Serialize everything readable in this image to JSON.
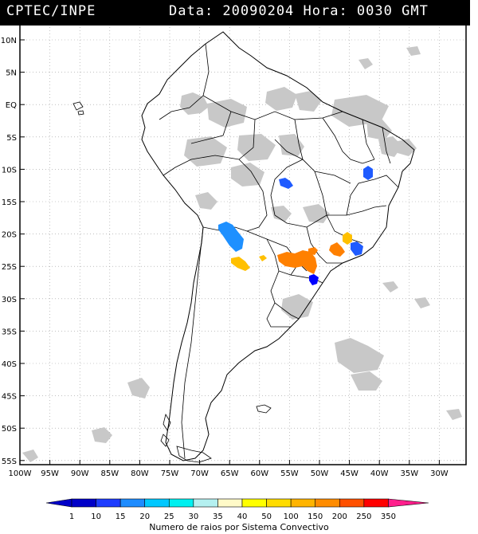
{
  "header": {
    "source": "CPTEC/INPE",
    "datetime": "Data: 20090204 Hora: 0030 GMT"
  },
  "map": {
    "lat_labels": [
      "10N",
      "5N",
      "EQ",
      "5S",
      "10S",
      "15S",
      "20S",
      "25S",
      "30S",
      "35S",
      "40S",
      "45S",
      "50S",
      "55S"
    ],
    "lon_labels": [
      "100W",
      "95W",
      "90W",
      "85W",
      "80W",
      "75W",
      "70W",
      "65W",
      "60W",
      "55W",
      "50W",
      "45W",
      "40W",
      "35W",
      "30W"
    ],
    "colors": {
      "land_border": "#000000",
      "grid": "#9a9a9a",
      "clouds": "#c8c8c8"
    },
    "systems": [
      {
        "name": "system-goias",
        "color": "#1f5bff"
      },
      {
        "name": "system-bahia",
        "color": "#1f5bff"
      },
      {
        "name": "system-bolivia",
        "color": "#1e90ff"
      },
      {
        "name": "system-paraguay-argentina",
        "color": "#ffc000"
      },
      {
        "name": "system-sao-paulo-parana",
        "color": "#ff8000"
      },
      {
        "name": "system-minas",
        "color": "#ffc000"
      },
      {
        "name": "system-rio",
        "color": "#1f5bff"
      },
      {
        "name": "system-santa-catarina",
        "color": "#0000ff"
      }
    ]
  },
  "legend": {
    "labels": [
      "1",
      "10",
      "15",
      "20",
      "25",
      "30",
      "35",
      "40",
      "50",
      "100",
      "150",
      "200",
      "250",
      "350"
    ],
    "colors": [
      "#0000c8",
      "#1e3cff",
      "#1e8cff",
      "#00c8ff",
      "#00f0f0",
      "#b4f0f0",
      "#fffac8",
      "#ffff00",
      "#ffdc00",
      "#ffb400",
      "#ff8c00",
      "#ff5000",
      "#ff0000",
      "#ff1e8c"
    ],
    "title": "Numero de raios por Sistema Convectivo"
  }
}
